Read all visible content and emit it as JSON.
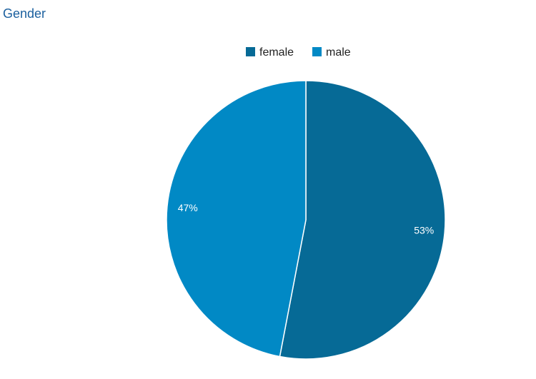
{
  "chart_data": {
    "type": "pie",
    "title": "Gender",
    "categories": [
      "female",
      "male"
    ],
    "values": [
      53,
      47
    ],
    "value_labels": [
      "53%",
      "47%"
    ],
    "colors": [
      "#066a96",
      "#0189c5"
    ]
  }
}
